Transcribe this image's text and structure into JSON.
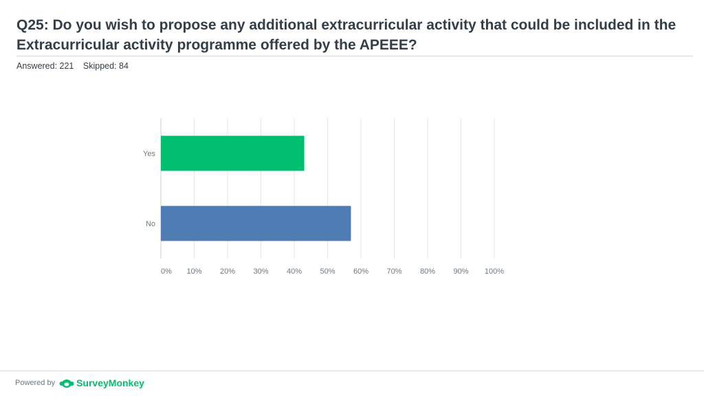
{
  "question": {
    "title": "Q25: Do you wish to propose any additional extracurricular activity that could be included in the Extracurricular activity programme offered by the APEEE?",
    "answered_label": "Answered: 221",
    "skipped_label": "Skipped: 84"
  },
  "footer": {
    "powered_by": "Powered by",
    "brand": "SurveyMonkey",
    "brand_icon": "surveymonkey-logo-icon"
  },
  "colors": {
    "yes_bar": "#00bf6f",
    "no_bar": "#507cb6",
    "grid": "#e5e5e5",
    "axis_text": "#6b787f",
    "title_text": "#333e48"
  },
  "chart_data": {
    "type": "bar",
    "orientation": "horizontal",
    "categories": [
      "Yes",
      "No"
    ],
    "values": [
      43,
      57
    ],
    "unit": "%",
    "xlim": [
      0,
      100
    ],
    "x_ticks": [
      "0%",
      "10%",
      "20%",
      "30%",
      "40%",
      "50%",
      "60%",
      "70%",
      "80%",
      "90%",
      "100%"
    ],
    "grid": true,
    "title": "",
    "xlabel": "",
    "ylabel": ""
  }
}
